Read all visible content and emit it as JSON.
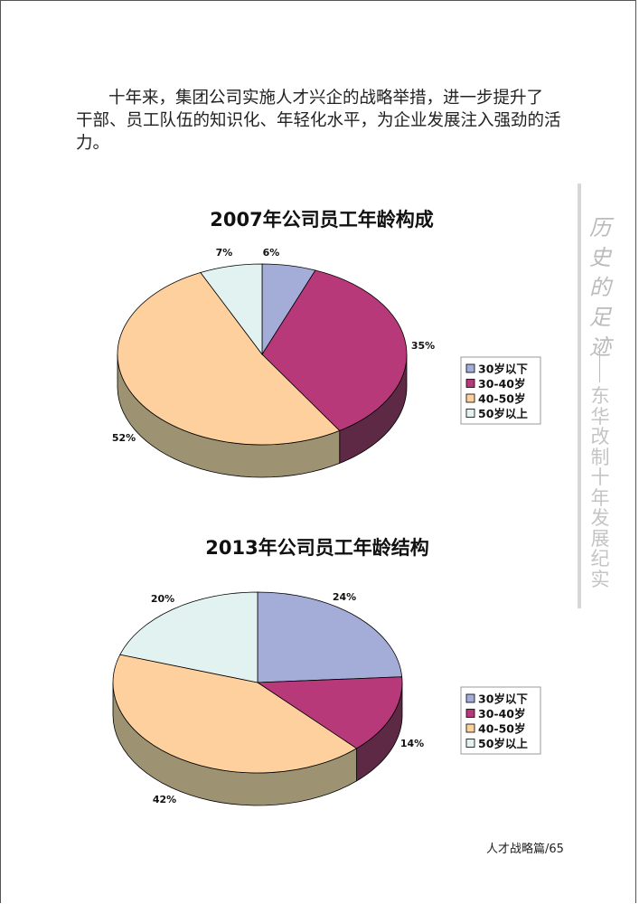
{
  "paragraph": {
    "lines": [
      "十年来，集团公司实施人才兴企的战略举措，进一步提升了",
      "干部、员工队伍的知识化、年轻化水平，为企业发展注入强劲的活",
      "力。"
    ]
  },
  "side": {
    "calligraphy": "历史的足迹",
    "subtitle": "东华改制十年发展纪实"
  },
  "footer": "人才战略篇/65",
  "chart_data": [
    {
      "type": "pie",
      "style": "3d",
      "title": "2007年公司员工年龄构成",
      "categories": [
        "30岁以下",
        "30-40岁",
        "40-50岁",
        "50岁以上"
      ],
      "values": [
        6,
        35,
        52,
        7
      ],
      "data_labels": [
        "6%",
        "35%",
        "52%",
        "7%"
      ],
      "colors": [
        "#a4acd8",
        "#b8397a",
        "#fdd09e",
        "#e1f2f0"
      ],
      "legend": "right"
    },
    {
      "type": "pie",
      "style": "3d",
      "title": "2013年公司员工年龄结构",
      "categories": [
        "30岁以下",
        "30-40岁",
        "40-50岁",
        "50岁以上"
      ],
      "values": [
        24,
        14,
        42,
        20
      ],
      "data_labels": [
        "24%",
        "14%",
        "42%",
        "20%"
      ],
      "colors": [
        "#a4acd8",
        "#b8397a",
        "#fdd09e",
        "#e1f2f0"
      ],
      "legend": "right"
    }
  ]
}
